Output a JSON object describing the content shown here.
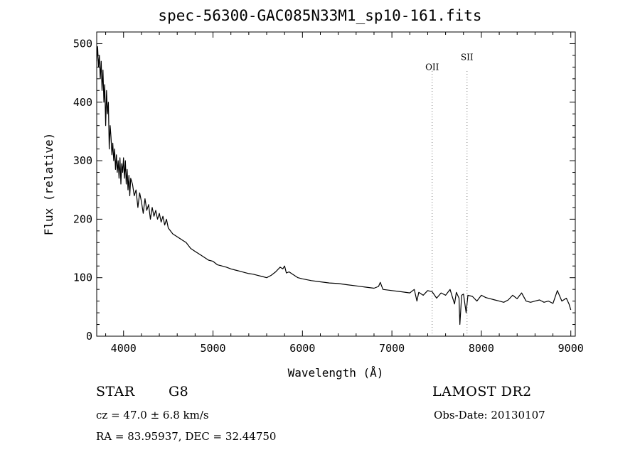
{
  "chart_data": {
    "type": "line",
    "title": "spec-56300-GAC085N33M1_sp10-161.fits",
    "xlabel": "Wavelength (Å)",
    "ylabel": "Flux (relative)",
    "xlim": [
      3700,
      9050
    ],
    "ylim": [
      0,
      520
    ],
    "xticks": [
      4000,
      5000,
      6000,
      7000,
      8000,
      9000
    ],
    "yticks": [
      0,
      100,
      200,
      300,
      400,
      500
    ],
    "xtick_labels": [
      "4000",
      "5000",
      "6000",
      "7000",
      "8000",
      "9000"
    ],
    "ytick_labels": [
      "0",
      "100",
      "200",
      "300",
      "400",
      "500"
    ],
    "grid": false,
    "series": [
      {
        "x": [
          3700,
          3710,
          3720,
          3730,
          3740,
          3750,
          3760,
          3770,
          3780,
          3790,
          3800,
          3810,
          3820,
          3830,
          3840,
          3850,
          3860,
          3870,
          3880,
          3890,
          3900,
          3910,
          3920,
          3930,
          3940,
          3950,
          3960,
          3970,
          3980,
          3990,
          4000,
          4010,
          4020,
          4030,
          4040,
          4050,
          4060,
          4070,
          4080,
          4100,
          4120,
          4140,
          4160,
          4180,
          4200,
          4220,
          4240,
          4260,
          4280,
          4300,
          4320,
          4340,
          4360,
          4380,
          4400,
          4420,
          4440,
          4460,
          4480,
          4500,
          4550,
          4600,
          4650,
          4700,
          4750,
          4800,
          4850,
          4900,
          4950,
          5000,
          5050,
          5100,
          5150,
          5200,
          5250,
          5300,
          5350,
          5400,
          5450,
          5500,
          5550,
          5600,
          5650,
          5700,
          5750,
          5780,
          5800,
          5820,
          5850,
          5900,
          5950,
          6000,
          6100,
          6200,
          6300,
          6400,
          6500,
          6600,
          6700,
          6800,
          6850,
          6870,
          6900,
          7000,
          7100,
          7200,
          7250,
          7280,
          7300,
          7350,
          7400,
          7450,
          7500,
          7550,
          7600,
          7650,
          7700,
          7720,
          7750,
          7760,
          7780,
          7800,
          7830,
          7850,
          7900,
          7950,
          8000,
          8050,
          8100,
          8150,
          8200,
          8250,
          8300,
          8350,
          8400,
          8450,
          8500,
          8550,
          8600,
          8650,
          8700,
          8750,
          8800,
          8850,
          8900,
          8950,
          8980,
          9000
        ],
        "y": [
          470,
          495,
          460,
          480,
          440,
          470,
          420,
          455,
          400,
          430,
          360,
          420,
          380,
          400,
          320,
          360,
          340,
          310,
          330,
          300,
          320,
          285,
          310,
          280,
          300,
          270,
          305,
          260,
          295,
          280,
          305,
          270,
          300,
          260,
          285,
          250,
          275,
          240,
          270,
          260,
          240,
          250,
          220,
          245,
          230,
          210,
          235,
          215,
          225,
          200,
          220,
          205,
          215,
          200,
          210,
          195,
          205,
          190,
          200,
          185,
          175,
          170,
          165,
          160,
          150,
          145,
          140,
          135,
          130,
          128,
          122,
          120,
          118,
          115,
          113,
          111,
          109,
          107,
          106,
          104,
          102,
          100,
          104,
          110,
          118,
          115,
          120,
          108,
          110,
          105,
          100,
          98,
          95,
          93,
          91,
          90,
          88,
          86,
          84,
          82,
          85,
          92,
          80,
          78,
          76,
          74,
          80,
          60,
          75,
          70,
          78,
          76,
          65,
          74,
          70,
          80,
          55,
          75,
          65,
          20,
          70,
          72,
          40,
          70,
          68,
          60,
          70,
          66,
          64,
          62,
          60,
          58,
          62,
          70,
          64,
          74,
          60,
          58,
          60,
          62,
          58,
          60,
          56,
          78,
          60,
          65,
          55,
          45
        ]
      }
    ],
    "annotations": [
      {
        "label": "OII",
        "x": 7450,
        "y_label": 455
      },
      {
        "label": "SII",
        "x": 7840,
        "y_label": 472
      }
    ],
    "footer": {
      "class_label": "STAR",
      "subclass": "G8",
      "survey": "LAMOST DR2",
      "cz_text": "cz = 47.0 ± 6.8 km/s",
      "obs_date_text": "Obs-Date: 20130107",
      "coords_text": "RA =  83.95937, DEC =  32.44750"
    }
  }
}
